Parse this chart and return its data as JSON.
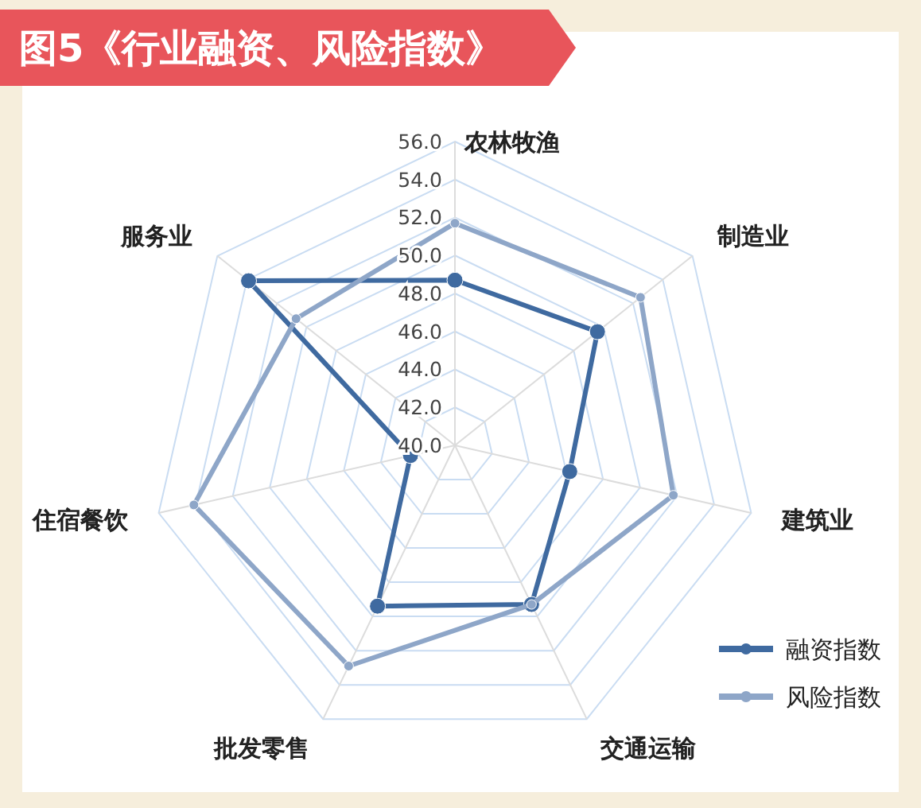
{
  "chart_data": {
    "type": "radar",
    "title": "图5《行业融资、风险指数》",
    "categories": [
      "农林牧渔",
      "制造业",
      "建筑业",
      "交通运输",
      "批发零售",
      "住宿餐饮",
      "服务业"
    ],
    "series": [
      {
        "name": "融资指数",
        "color": "#3f6aa0",
        "values": [
          48.7,
          49.6,
          46.2,
          49.3,
          49.4,
          42.4,
          53.9
        ]
      },
      {
        "name": "风险指数",
        "color": "#8ea6c8",
        "values": [
          51.7,
          52.5,
          51.8,
          49.3,
          52.9,
          54.1,
          50.7
        ]
      }
    ],
    "ylim": [
      40,
      56
    ],
    "yticks": [
      {
        "value": 40,
        "label": "40.0"
      },
      {
        "value": 42,
        "label": "42.0"
      },
      {
        "value": 44,
        "label": "44.0"
      },
      {
        "value": 46,
        "label": "46.0"
      },
      {
        "value": 48,
        "label": "48.0"
      },
      {
        "value": 50,
        "label": "50.0"
      },
      {
        "value": 52,
        "label": "52.0"
      },
      {
        "value": 54,
        "label": "54.0"
      },
      {
        "value": 56,
        "label": "56.0"
      }
    ],
    "grid": true,
    "legend": "bottom right",
    "marker": "circle",
    "line_style": "solid"
  }
}
